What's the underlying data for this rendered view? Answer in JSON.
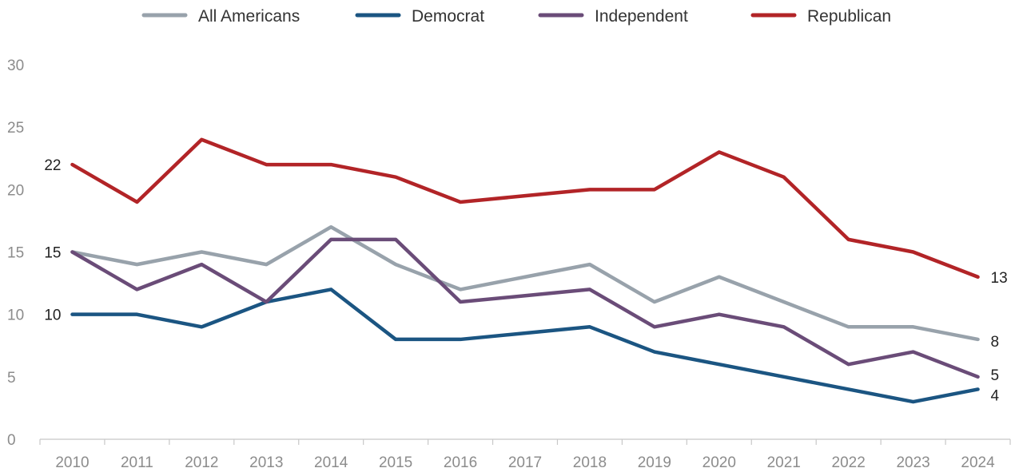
{
  "chart_data": {
    "type": "line",
    "x": [
      "2010",
      "2011",
      "2012",
      "2013",
      "2014",
      "2015",
      "2016",
      "2017",
      "2018",
      "2019",
      "2020",
      "2021",
      "2022",
      "2023",
      "2024"
    ],
    "ylim": [
      0,
      30
    ],
    "yticks": [
      0,
      5,
      10,
      15,
      20,
      25,
      30
    ],
    "grid": false,
    "legend_position": "top",
    "series": [
      {
        "name": "All Americans",
        "color": "#98a2ab",
        "values": [
          15,
          14,
          15,
          14,
          17,
          14,
          12,
          13,
          14,
          11,
          13,
          11,
          9,
          9,
          8
        ]
      },
      {
        "name": "Democrat",
        "color": "#1b5582",
        "values": [
          10,
          10,
          9,
          11,
          12,
          8,
          8,
          8.5,
          9,
          7,
          6,
          5,
          4,
          3,
          4
        ]
      },
      {
        "name": "Independent",
        "color": "#6a4c78",
        "values": [
          15,
          12,
          14,
          11,
          16,
          16,
          11,
          11.5,
          12,
          9,
          10,
          9,
          6,
          7,
          5
        ]
      },
      {
        "name": "Republican",
        "color": "#b22427",
        "values": [
          22,
          19,
          24,
          22,
          22,
          21,
          19,
          19.5,
          20,
          20,
          23,
          21,
          16,
          15,
          13
        ]
      }
    ],
    "annotations": [
      {
        "series": "Republican",
        "index": 0,
        "text": "22",
        "side": "left"
      },
      {
        "series": "All Americans",
        "index": 0,
        "text": "15",
        "side": "left"
      },
      {
        "series": "Democrat",
        "index": 0,
        "text": "10",
        "side": "left"
      },
      {
        "series": "Republican",
        "index": 14,
        "text": "13",
        "side": "right"
      },
      {
        "series": "All Americans",
        "index": 14,
        "text": "8",
        "side": "right"
      },
      {
        "series": "Independent",
        "index": 14,
        "text": "5",
        "side": "right"
      },
      {
        "series": "Democrat",
        "index": 14,
        "text": "4",
        "side": "right"
      }
    ]
  }
}
